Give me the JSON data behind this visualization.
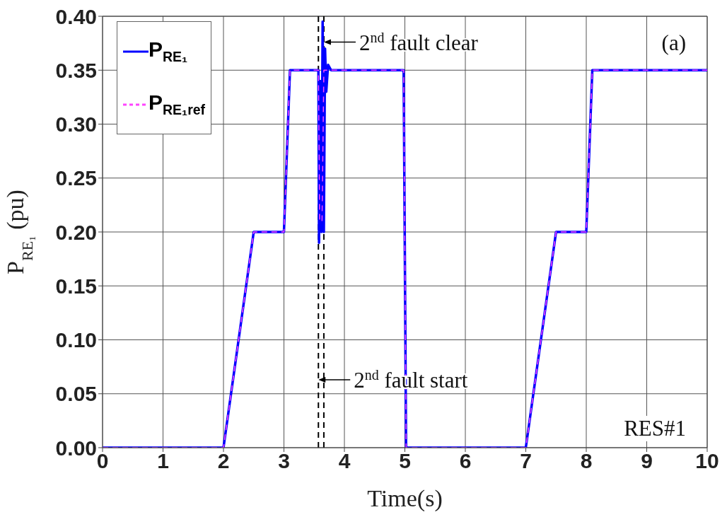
{
  "chart_data": {
    "type": "line",
    "xlabel": "Time(s)",
    "ylabel": "P$_{RE₁}$ (pu)",
    "series": [
      {
        "name": "P$_{RE₁}$",
        "color": "#0000ff",
        "line_style": "solid",
        "x": [
          0,
          2,
          2.5,
          3.0,
          3.1,
          3.57,
          3.58,
          3.6,
          3.62,
          3.64,
          3.66,
          3.68,
          3.7,
          3.73,
          3.78,
          4.98,
          5.02,
          7.0,
          7.5,
          8.0,
          8.1,
          10
        ],
        "values": [
          0,
          0,
          0.2,
          0.2,
          0.35,
          0.35,
          0.19,
          0.34,
          0.2,
          0.395,
          0.2,
          0.37,
          0.33,
          0.355,
          0.35,
          0.35,
          0,
          0,
          0.2,
          0.2,
          0.35,
          0.35
        ]
      },
      {
        "name": "P$_{RE₁ref}$",
        "color": "#ff44ff",
        "line_style": "dashed",
        "x": [
          0,
          2,
          2.5,
          3.0,
          3.1,
          3.57,
          3.59,
          3.63,
          3.66,
          4.98,
          5.02,
          7.0,
          7.5,
          8.0,
          8.1,
          10
        ],
        "values": [
          0,
          0,
          0.2,
          0.2,
          0.35,
          0.35,
          0.21,
          0.21,
          0.35,
          0.35,
          0,
          0,
          0.2,
          0.2,
          0.35,
          0.35
        ]
      }
    ],
    "xlim": [
      0,
      10
    ],
    "xticks": [
      0,
      1,
      2,
      3,
      4,
      5,
      6,
      7,
      8,
      9,
      10
    ],
    "ylim": [
      0,
      0.4
    ],
    "yticks": [
      {
        "value": 0,
        "label": "0.00"
      },
      {
        "value": 0.05,
        "label": "0.05"
      },
      {
        "value": 0.1,
        "label": "0.10"
      },
      {
        "value": 0.15,
        "label": "0.15"
      },
      {
        "value": 0.2,
        "label": "0.20"
      },
      {
        "value": 0.25,
        "label": "0.25"
      },
      {
        "value": 0.3,
        "label": "0.30"
      },
      {
        "value": 0.35,
        "label": "0.35"
      },
      {
        "value": 0.4,
        "label": "0.40"
      }
    ],
    "ref_lines": [
      {
        "axis": "x",
        "value": 3.57,
        "color": "#000000",
        "line_style": "dashed"
      },
      {
        "axis": "x",
        "value": 3.66,
        "color": "#000000",
        "line_style": "dashed"
      }
    ],
    "annotations": [
      {
        "text": "2$^{nd}$ fault clear",
        "x": 3.66,
        "y": 0.376
      },
      {
        "text": "2$^{nd}$ fault start",
        "x": 3.57,
        "y": 0.063
      },
      "(a)",
      "RES#1"
    ],
    "grid": true,
    "legend": "top left",
    "marker": "none"
  }
}
